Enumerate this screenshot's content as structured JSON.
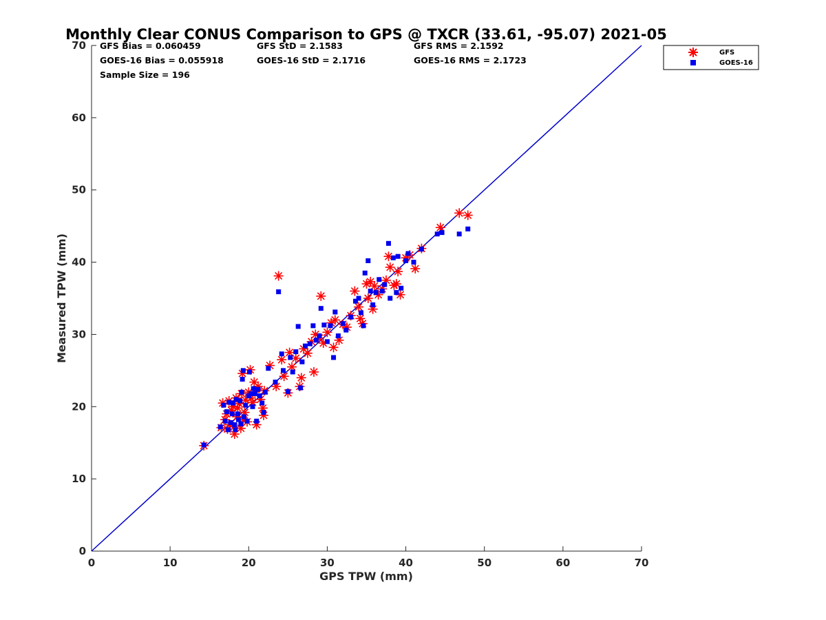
{
  "chart_data": {
    "type": "scatter",
    "title": "Monthly Clear CONUS Comparison to GPS @ TXCR (33.61, -95.07) 2021-05",
    "xlabel": "GPS TPW (mm)",
    "ylabel": "Measured TPW (mm)",
    "xlim": [
      0,
      70
    ],
    "ylim": [
      0,
      70
    ],
    "xticks": [
      "0",
      "10",
      "20",
      "30",
      "40",
      "50",
      "60",
      "70"
    ],
    "yticks": [
      "0",
      "10",
      "20",
      "30",
      "40",
      "50",
      "60",
      "70"
    ],
    "grid": false,
    "legend_position": "outside-top-right",
    "stats": [
      "GFS Bias = 0.060459",
      "GFS StD = 2.1583",
      "GFS RMS = 2.1592",
      "GOES-16 Bias = 0.055918",
      "GOES-16 StD = 2.1716",
      "GOES-16 RMS = 2.1723",
      "Sample Size = 196"
    ],
    "reference_line": {
      "x": [
        0,
        70
      ],
      "y": [
        0,
        70
      ],
      "color": "#0000cc"
    },
    "series": [
      {
        "name": "GFS",
        "marker": "asterisk",
        "color": "#ff0000",
        "points": [
          [
            14.3,
            14.6
          ],
          [
            16.5,
            17.1
          ],
          [
            16.7,
            20.5
          ],
          [
            17.0,
            18.2
          ],
          [
            17.2,
            19.0
          ],
          [
            17.3,
            16.9
          ],
          [
            17.5,
            20.8
          ],
          [
            17.6,
            17.5
          ],
          [
            17.8,
            19.5
          ],
          [
            18.0,
            20.0
          ],
          [
            18.1,
            17.2
          ],
          [
            18.2,
            16.2
          ],
          [
            18.4,
            21.2
          ],
          [
            18.5,
            18.6
          ],
          [
            18.6,
            19.8
          ],
          [
            18.8,
            20.4
          ],
          [
            19.0,
            17.0
          ],
          [
            19.1,
            21.8
          ],
          [
            19.2,
            24.6
          ],
          [
            19.3,
            18.2
          ],
          [
            19.5,
            19.2
          ],
          [
            19.6,
            20.9
          ],
          [
            19.8,
            17.9
          ],
          [
            20.0,
            22.0
          ],
          [
            20.2,
            25.1
          ],
          [
            20.3,
            21.2
          ],
          [
            20.5,
            20.6
          ],
          [
            20.7,
            23.4
          ],
          [
            20.8,
            22.0
          ],
          [
            21.0,
            17.5
          ],
          [
            21.2,
            22.8
          ],
          [
            21.5,
            21.0
          ],
          [
            21.8,
            19.8
          ],
          [
            21.9,
            18.8
          ],
          [
            22.0,
            22.2
          ],
          [
            22.7,
            25.7
          ],
          [
            23.5,
            22.8
          ],
          [
            23.8,
            38.1
          ],
          [
            24.2,
            26.5
          ],
          [
            24.5,
            24.2
          ],
          [
            25.0,
            21.9
          ],
          [
            25.2,
            27.5
          ],
          [
            25.5,
            25.5
          ],
          [
            26.0,
            26.7
          ],
          [
            26.5,
            22.8
          ],
          [
            26.7,
            24.0
          ],
          [
            27.0,
            28.0
          ],
          [
            27.5,
            27.4
          ],
          [
            28.0,
            29.0
          ],
          [
            28.3,
            24.8
          ],
          [
            28.5,
            30.0
          ],
          [
            29.0,
            29.5
          ],
          [
            29.2,
            35.3
          ],
          [
            29.5,
            28.8
          ],
          [
            30.0,
            30.3
          ],
          [
            30.5,
            31.6
          ],
          [
            30.8,
            28.2
          ],
          [
            31.0,
            32.0
          ],
          [
            31.5,
            29.2
          ],
          [
            32.0,
            31.4
          ],
          [
            32.5,
            31.0
          ],
          [
            33.0,
            32.6
          ],
          [
            33.5,
            36.0
          ],
          [
            34.0,
            33.8
          ],
          [
            34.2,
            32.2
          ],
          [
            34.5,
            31.5
          ],
          [
            35.0,
            37.0
          ],
          [
            35.2,
            35.0
          ],
          [
            35.5,
            37.3
          ],
          [
            35.8,
            33.5
          ],
          [
            36.0,
            36.7
          ],
          [
            36.5,
            35.5
          ],
          [
            37.0,
            36.3
          ],
          [
            37.5,
            37.5
          ],
          [
            37.8,
            40.8
          ],
          [
            38.0,
            39.3
          ],
          [
            38.5,
            36.8
          ],
          [
            38.8,
            37.0
          ],
          [
            39.0,
            38.7
          ],
          [
            39.3,
            35.5
          ],
          [
            40.0,
            40.6
          ],
          [
            40.5,
            41.0
          ],
          [
            41.2,
            39.1
          ],
          [
            42.0,
            41.9
          ],
          [
            44.4,
            44.8
          ],
          [
            46.8,
            46.8
          ],
          [
            47.9,
            46.5
          ]
        ]
      },
      {
        "name": "GOES-16",
        "marker": "square",
        "color": "#0000ee",
        "points": [
          [
            14.3,
            14.7
          ],
          [
            16.4,
            17.2
          ],
          [
            16.8,
            20.2
          ],
          [
            17.0,
            18.0
          ],
          [
            17.2,
            19.3
          ],
          [
            17.4,
            16.8
          ],
          [
            17.5,
            20.6
          ],
          [
            17.7,
            17.8
          ],
          [
            17.9,
            19.0
          ],
          [
            18.0,
            20.5
          ],
          [
            18.2,
            17.5
          ],
          [
            18.3,
            16.8
          ],
          [
            18.4,
            21.0
          ],
          [
            18.6,
            19.0
          ],
          [
            18.7,
            18.2
          ],
          [
            18.9,
            20.8
          ],
          [
            19.0,
            17.6
          ],
          [
            19.1,
            22.0
          ],
          [
            19.2,
            23.8
          ],
          [
            19.3,
            25.0
          ],
          [
            19.4,
            18.6
          ],
          [
            19.6,
            20.2
          ],
          [
            19.8,
            18.0
          ],
          [
            20.0,
            21.5
          ],
          [
            20.1,
            24.8
          ],
          [
            20.3,
            21.8
          ],
          [
            20.5,
            20.0
          ],
          [
            20.6,
            22.5
          ],
          [
            20.8,
            21.8
          ],
          [
            21.0,
            18.0
          ],
          [
            21.2,
            22.4
          ],
          [
            21.4,
            21.5
          ],
          [
            21.7,
            20.5
          ],
          [
            21.9,
            19.2
          ],
          [
            22.1,
            22.0
          ],
          [
            22.5,
            25.3
          ],
          [
            23.4,
            23.4
          ],
          [
            23.8,
            35.9
          ],
          [
            24.2,
            27.3
          ],
          [
            24.4,
            25.0
          ],
          [
            25.0,
            22.1
          ],
          [
            25.3,
            26.8
          ],
          [
            25.6,
            24.8
          ],
          [
            26.0,
            27.6
          ],
          [
            26.3,
            31.1
          ],
          [
            26.6,
            22.6
          ],
          [
            26.8,
            26.2
          ],
          [
            27.2,
            28.4
          ],
          [
            27.8,
            28.7
          ],
          [
            28.2,
            31.2
          ],
          [
            28.6,
            29.2
          ],
          [
            29.0,
            29.8
          ],
          [
            29.2,
            33.6
          ],
          [
            29.6,
            31.3
          ],
          [
            30.0,
            29.0
          ],
          [
            30.4,
            31.2
          ],
          [
            30.8,
            26.8
          ],
          [
            31.0,
            33.1
          ],
          [
            31.4,
            29.8
          ],
          [
            32.0,
            31.5
          ],
          [
            32.4,
            30.6
          ],
          [
            33.0,
            32.4
          ],
          [
            33.6,
            34.6
          ],
          [
            34.0,
            35.0
          ],
          [
            34.3,
            33.0
          ],
          [
            34.6,
            31.2
          ],
          [
            34.8,
            38.5
          ],
          [
            35.2,
            40.2
          ],
          [
            35.5,
            36.0
          ],
          [
            35.8,
            34.1
          ],
          [
            36.2,
            35.8
          ],
          [
            36.6,
            37.6
          ],
          [
            37.0,
            36.0
          ],
          [
            37.3,
            36.9
          ],
          [
            37.8,
            42.6
          ],
          [
            38.0,
            35.0
          ],
          [
            38.4,
            40.6
          ],
          [
            38.8,
            35.8
          ],
          [
            39.0,
            40.8
          ],
          [
            39.4,
            36.4
          ],
          [
            40.0,
            40.2
          ],
          [
            40.3,
            41.2
          ],
          [
            41.0,
            40.0
          ],
          [
            42.0,
            41.8
          ],
          [
            44.0,
            43.9
          ],
          [
            44.6,
            44.1
          ],
          [
            46.8,
            43.9
          ],
          [
            47.9,
            44.6
          ]
        ]
      }
    ]
  }
}
